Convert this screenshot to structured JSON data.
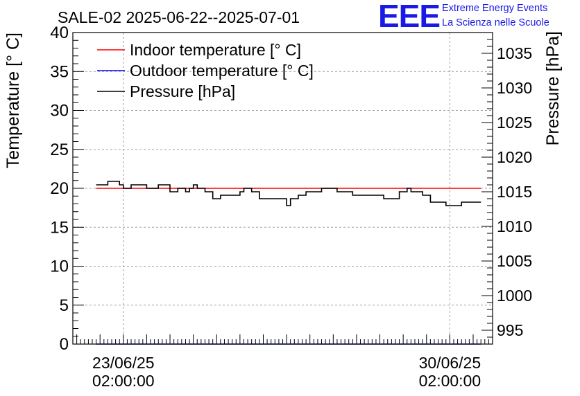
{
  "logo": {
    "mark": "EEE",
    "line1": "Extreme Energy Events",
    "line2": "La Scienza nelle Scuole",
    "color": "#1a1ae6"
  },
  "chart_data": {
    "type": "line",
    "title": "SALE-02 2025-06-22--2025-07-01",
    "ylabel_left": "Temperature [° C]",
    "ylabel_right": "Pressure [hPa]",
    "xlim": [
      "2025-06-22T00:00",
      "2025-07-01T00:00"
    ],
    "ylim_left": [
      0,
      40
    ],
    "ylim_right": [
      993,
      1038
    ],
    "left_ticks": [
      "0",
      "5",
      "10",
      "15",
      "20",
      "25",
      "30",
      "35",
      "40"
    ],
    "right_ticks": [
      "995",
      "1000",
      "1005",
      "1010",
      "1015",
      "1020",
      "1025",
      "1030",
      "1035"
    ],
    "x_ticks": [
      {
        "x": "2025-06-23T02:00",
        "line1": "23/06/25",
        "line2": "02:00:00"
      },
      {
        "x": "2025-06-30T02:00",
        "line1": "30/06/25",
        "line2": "02:00:00"
      }
    ],
    "grid": true,
    "legend_position": "top-left",
    "series": [
      {
        "name": "Indoor temperature [° C]",
        "axis": "left",
        "color": "#ff0000",
        "x": [
          "2025-06-22T12:00",
          "2025-06-30T18:00"
        ],
        "y": [
          20,
          20
        ]
      },
      {
        "name": "Outdoor temperature [° C]",
        "axis": "left",
        "color": "#0000ff",
        "x": [
          "2025-06-22T12:00",
          "2025-06-30T18:00"
        ],
        "y": [
          0,
          0
        ]
      },
      {
        "name": "Pressure [hPa]",
        "axis": "right",
        "color": "#000000",
        "x": [
          "2025-06-22T12:00",
          "2025-06-22T16:00",
          "2025-06-22T18:00",
          "2025-06-22T20:00",
          "2025-06-23T00:00",
          "2025-06-23T02:00",
          "2025-06-23T04:00",
          "2025-06-23T06:00",
          "2025-06-23T12:00",
          "2025-06-23T14:00",
          "2025-06-23T20:00",
          "2025-06-24T00:00",
          "2025-06-24T02:00",
          "2025-06-24T04:00",
          "2025-06-24T06:00",
          "2025-06-24T08:00",
          "2025-06-24T10:00",
          "2025-06-24T11:00",
          "2025-06-24T12:00",
          "2025-06-24T14:00",
          "2025-06-24T16:00",
          "2025-06-24T20:00",
          "2025-06-25T00:00",
          "2025-06-25T02:00",
          "2025-06-25T04:00",
          "2025-06-25T06:00",
          "2025-06-25T08:00",
          "2025-06-25T12:00",
          "2025-06-25T14:00",
          "2025-06-25T16:00",
          "2025-06-25T20:00",
          "2025-06-26T00:00",
          "2025-06-26T02:00",
          "2025-06-26T04:00",
          "2025-06-26T06:00",
          "2025-06-26T08:00",
          "2025-06-26T10:00",
          "2025-06-26T14:00",
          "2025-06-26T16:00",
          "2025-06-26T20:00",
          "2025-06-27T00:00",
          "2025-06-27T04:00",
          "2025-06-27T08:00",
          "2025-06-27T12:00",
          "2025-06-27T16:00",
          "2025-06-27T20:00",
          "2025-06-28T00:00",
          "2025-06-28T04:00",
          "2025-06-28T08:00",
          "2025-06-28T12:00",
          "2025-06-28T16:00",
          "2025-06-28T20:00",
          "2025-06-29T00:00",
          "2025-06-29T04:00",
          "2025-06-29T06:00",
          "2025-06-29T08:00",
          "2025-06-29T12:00",
          "2025-06-29T16:00",
          "2025-06-29T20:00",
          "2025-06-30T00:00",
          "2025-06-30T04:00",
          "2025-06-30T08:00",
          "2025-06-30T12:00",
          "2025-06-30T14:00",
          "2025-06-30T18:00"
        ],
        "y": [
          1016,
          1016,
          1016.5,
          1016.5,
          1016,
          1015.5,
          1015.5,
          1016,
          1016,
          1015.5,
          1016,
          1016,
          1015,
          1015,
          1015.5,
          1015.5,
          1015,
          1015,
          1015.5,
          1016,
          1015.5,
          1015,
          1014,
          1014,
          1014.5,
          1014.5,
          1014.5,
          1014.5,
          1015,
          1015.5,
          1015,
          1014,
          1014,
          1014,
          1014,
          1014,
          1014,
          1013,
          1014,
          1014.5,
          1015,
          1015,
          1015.5,
          1015.5,
          1015,
          1015,
          1014.5,
          1014.5,
          1014.5,
          1014.5,
          1014,
          1014,
          1015,
          1015.5,
          1015,
          1015,
          1014.5,
          1013.5,
          1013.5,
          1013,
          1013,
          1013.5,
          1013.5,
          1013.5,
          1013.5
        ]
      }
    ]
  }
}
